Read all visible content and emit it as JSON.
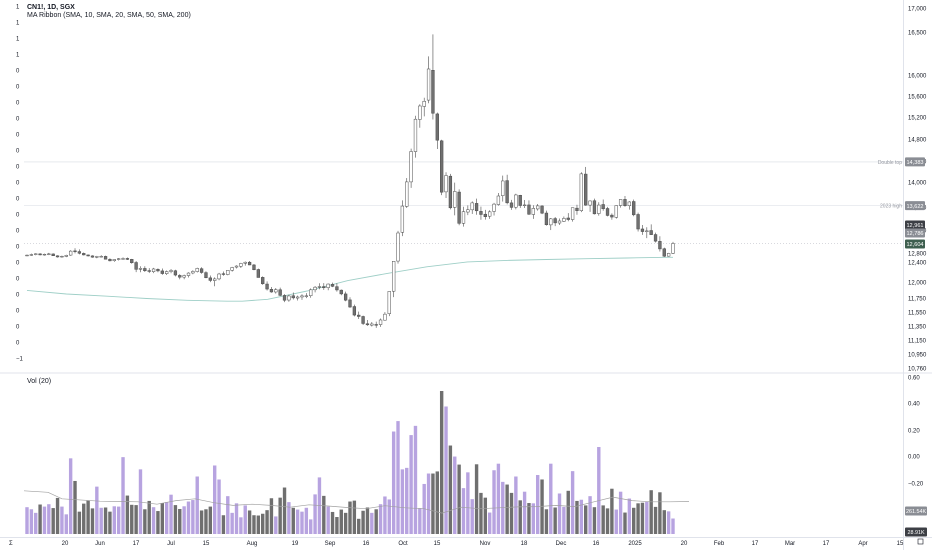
{
  "header": {
    "symbol_line": "CN1!, 1D, SGX",
    "indicator_line": "MA Ribbon (SMA, 10, SMA, 20, SMA, 50, SMA, 200)",
    "volume_line": "Vol (20)"
  },
  "colors": {
    "up": "#ffffff",
    "down": "#707070",
    "candle_outline": "#4a4a4a",
    "vol_up": "#b7a3e0",
    "vol_down": "#6f6f6f",
    "sma200": "#9fcfc7",
    "vol_ma": "#a0a0a0",
    "grid": "#eef0f3"
  },
  "chart_data": [
    {
      "type": "candlestick",
      "title": "CN1!, 1D, SGX",
      "price_axis_ticks": [
        "17,000",
        "16,500",
        "16,000",
        "15,600",
        "15,200",
        "14,800",
        "14,400",
        "14,000",
        "13,600",
        "13,200",
        "12,800",
        "12,400",
        "12,000",
        "11,750",
        "11,550",
        "11,350",
        "11,150",
        "10,950",
        "10,760"
      ],
      "time_axis_labels": [
        "20",
        "Jun",
        "17",
        "Jul",
        "15",
        "Aug",
        "19",
        "Sep",
        "16",
        "Oct",
        "15",
        "Nov",
        "18",
        "Dec",
        "16",
        "2025",
        "20",
        "Feb",
        "17",
        "Mar",
        "17",
        "Apr",
        "15"
      ],
      "left_axis_labels": [
        "1",
        "1",
        "1",
        "1",
        "0",
        "0",
        "0",
        "0",
        "0",
        "0",
        "0",
        "0",
        "0",
        "0",
        "0",
        "0",
        "0",
        "0",
        "0",
        "0",
        "0",
        "0",
        "−1"
      ],
      "annotations": [
        {
          "label": "Double top",
          "value": 14383
        },
        {
          "label": "2023 high",
          "value": 13622
        }
      ],
      "price_badges": [
        "14,383",
        "13,622",
        "12,961",
        "12,786",
        "12,604"
      ],
      "ohlc": [
        [
          12692,
          12729,
          12661,
          12706
        ],
        [
          12712,
          12773,
          12678,
          12733
        ],
        [
          12730,
          12787,
          12699,
          12764
        ],
        [
          12761,
          12791,
          12697,
          12716
        ],
        [
          12716,
          12775,
          12681,
          12745
        ],
        [
          12745,
          12802,
          12705,
          12762
        ],
        [
          12758,
          12783,
          12665,
          12678
        ],
        [
          12675,
          12698,
          12592,
          12624
        ],
        [
          12625,
          12681,
          12593,
          12656
        ],
        [
          12646,
          12722,
          12615,
          12699
        ],
        [
          12706,
          12848,
          12677,
          12833
        ],
        [
          12837,
          12882,
          12783,
          12830
        ],
        [
          12825,
          12862,
          12739,
          12787
        ],
        [
          12783,
          12808,
          12692,
          12714
        ],
        [
          12714,
          12736,
          12647,
          12669
        ],
        [
          12672,
          12698,
          12588,
          12614
        ],
        [
          12609,
          12671,
          12565,
          12648
        ],
        [
          12648,
          12703,
          12609,
          12653
        ],
        [
          12650,
          12683,
          12509,
          12524
        ],
        [
          12520,
          12568,
          12429,
          12451
        ],
        [
          12456,
          12534,
          12409,
          12515
        ],
        [
          12511,
          12571,
          12467,
          12546
        ],
        [
          12547,
          12608,
          12525,
          12555
        ],
        [
          12559,
          12602,
          12488,
          12515
        ],
        [
          12520,
          12539,
          12366,
          12385
        ],
        [
          12390,
          12447,
          12197,
          12253
        ],
        [
          12254,
          12316,
          12195,
          12272
        ],
        [
          12271,
          12316,
          12200,
          12225
        ],
        [
          12228,
          12278,
          12179,
          12211
        ],
        [
          12206,
          12282,
          12178,
          12261
        ],
        [
          12254,
          12272,
          12196,
          12222
        ],
        [
          12222,
          12269,
          12145,
          12169
        ],
        [
          12166,
          12231,
          12140,
          12209
        ],
        [
          12208,
          12261,
          12175,
          12232
        ],
        [
          12225,
          12246,
          12113,
          12139
        ],
        [
          12132,
          12156,
          12054,
          12096
        ],
        [
          12097,
          12148,
          12054,
          12130
        ],
        [
          12129,
          12195,
          12091,
          12179
        ],
        [
          12180,
          12236,
          12155,
          12212
        ],
        [
          12208,
          12286,
          12190,
          12273
        ],
        [
          12266,
          12294,
          12166,
          12190
        ],
        [
          12188,
          12216,
          12076,
          12085
        ],
        [
          12083,
          12129,
          11999,
          12031
        ],
        [
          12029,
          12093,
          11934,
          12062
        ],
        [
          12062,
          12183,
          12034,
          12160
        ],
        [
          12166,
          12210,
          12124,
          12151
        ],
        [
          12149,
          12238,
          12134,
          12234
        ],
        [
          12234,
          12303,
          12208,
          12291
        ],
        [
          12298,
          12336,
          12270,
          12319
        ],
        [
          12315,
          12382,
          12279,
          12372
        ],
        [
          12375,
          12424,
          12327,
          12396
        ],
        [
          12396,
          12442,
          12337,
          12341
        ],
        [
          12341,
          12360,
          12235,
          12245
        ],
        [
          12250,
          12268,
          12089,
          12090
        ],
        [
          12093,
          12112,
          11957,
          11972
        ],
        [
          11968,
          12013,
          11868,
          11890
        ],
        [
          11886,
          11922,
          11832,
          11844
        ],
        [
          11844,
          11906,
          11819,
          11880
        ],
        [
          11879,
          11913,
          11781,
          11791
        ],
        [
          11790,
          11811,
          11691,
          11718
        ],
        [
          11721,
          11800,
          11696,
          11782
        ],
        [
          11785,
          11836,
          11729,
          11752
        ],
        [
          11749,
          11787,
          11714,
          11766
        ],
        [
          11766,
          11808,
          11724,
          11783
        ],
        [
          11783,
          11826,
          11749,
          11784
        ],
        [
          11785,
          11900,
          11754,
          11878
        ],
        [
          11878,
          11937,
          11838,
          11919
        ],
        [
          11924,
          11980,
          11887,
          11929
        ],
        [
          11928,
          11982,
          11877,
          11910
        ],
        [
          11911,
          11977,
          11871,
          11968
        ],
        [
          11963,
          11991,
          11920,
          11932
        ],
        [
          11927,
          11981,
          11850,
          11876
        ],
        [
          11873,
          11883,
          11793,
          11814
        ],
        [
          11814,
          11850,
          11704,
          11719
        ],
        [
          11723,
          11761,
          11609,
          11621
        ],
        [
          11628,
          11655,
          11487,
          11506
        ],
        [
          11506,
          11556,
          11450,
          11486
        ],
        [
          11486,
          11499,
          11364,
          11386
        ],
        [
          11382,
          11435,
          11351,
          11367
        ],
        [
          11362,
          11408,
          11343,
          11379
        ],
        [
          11372,
          11413,
          11324,
          11368
        ],
        [
          11370,
          11457,
          11338,
          11436
        ],
        [
          11433,
          11548,
          11426,
          11519
        ],
        [
          11526,
          11855,
          11491,
          11853
        ],
        [
          11856,
          12441,
          11764,
          12432
        ],
        [
          12442,
          13184,
          12367,
          13148
        ],
        [
          13161,
          13706,
          13094,
          13615
        ],
        [
          13610,
          14075,
          13584,
          14002
        ],
        [
          14002,
          14626,
          13907,
          14573
        ],
        [
          14571,
          15223,
          14462,
          15160
        ],
        [
          15155,
          15444,
          15004,
          15410
        ],
        [
          15401,
          15567,
          15212,
          15500
        ],
        [
          15522,
          16216,
          15462,
          16070
        ],
        [
          16055,
          16473,
          15154,
          15272
        ],
        [
          15259,
          15284,
          14618,
          14778
        ],
        [
          14767,
          14787,
          13791,
          13837
        ],
        [
          13842,
          14185,
          13744,
          14124
        ],
        [
          14111,
          14154,
          13559,
          13586
        ],
        [
          13594,
          13990,
          13455,
          13849
        ],
        [
          13839,
          13883,
          13282,
          13316
        ],
        [
          13317,
          13604,
          13259,
          13519
        ],
        [
          13512,
          13626,
          13458,
          13552
        ],
        [
          13551,
          13690,
          13479,
          13666
        ],
        [
          13658,
          13734,
          13465,
          13534
        ],
        [
          13524,
          13607,
          13379,
          13470
        ],
        [
          13475,
          13549,
          13380,
          13431
        ],
        [
          13440,
          13543,
          13393,
          13516
        ],
        [
          13523,
          13667,
          13453,
          13646
        ],
        [
          13639,
          13824,
          13622,
          13776
        ],
        [
          13781,
          14122,
          13687,
          14020
        ],
        [
          14027,
          14139,
          13643,
          13667
        ],
        [
          13666,
          13714,
          13549,
          13593
        ],
        [
          13596,
          13813,
          13558,
          13793
        ],
        [
          13788,
          13794,
          13584,
          13624
        ],
        [
          13632,
          13712,
          13582,
          13633
        ],
        [
          13633,
          13706,
          13462,
          13474
        ],
        [
          13470,
          13628,
          13394,
          13576
        ],
        [
          13566,
          13649,
          13537,
          13618
        ],
        [
          13617,
          13628,
          13477,
          13493
        ],
        [
          13495,
          13536,
          13277,
          13291
        ],
        [
          13289,
          13409,
          13199,
          13394
        ],
        [
          13399,
          13426,
          13268,
          13324
        ],
        [
          13321,
          13400,
          13286,
          13357
        ],
        [
          13350,
          13434,
          13341,
          13402
        ],
        [
          13409,
          13494,
          13352,
          13382
        ],
        [
          13382,
          13588,
          13346,
          13587
        ],
        [
          13580,
          13636,
          13466,
          13536
        ],
        [
          13535,
          14185,
          13511,
          14155
        ],
        [
          14151,
          14287,
          13620,
          13630
        ],
        [
          13630,
          13706,
          13515,
          13697
        ],
        [
          13700,
          13734,
          13469,
          13481
        ],
        [
          13486,
          13676,
          13450,
          13631
        ],
        [
          13640,
          13720,
          13535,
          13569
        ],
        [
          13574,
          13603,
          13437,
          13453
        ],
        [
          13459,
          13489,
          13379,
          13425
        ],
        [
          13420,
          13627,
          13398,
          13623
        ],
        [
          13624,
          13725,
          13590,
          13721
        ],
        [
          13722,
          13776,
          13605,
          13620
        ],
        [
          13620,
          13695,
          13554,
          13681
        ],
        [
          13688,
          13719,
          13439,
          13464
        ],
        [
          13470,
          13503,
          13174,
          13217
        ],
        [
          13218,
          13287,
          13116,
          13173
        ],
        [
          13170,
          13247,
          13059,
          13185
        ],
        [
          13191,
          13297,
          13115,
          13119
        ],
        [
          13121,
          13154,
          12983,
          13006
        ],
        [
          13003,
          13092,
          12827,
          12871
        ],
        [
          12874,
          12893,
          12627,
          12657
        ],
        [
          12660,
          12803,
          12640,
          12784
        ],
        [
          12785,
          12994,
          12753,
          12966
        ]
      ],
      "sma200": {
        "x": [
          0,
          28,
          57,
          85,
          114,
          142,
          153,
          171,
          199,
          228,
          256,
          284,
          313,
          341,
          369,
          398,
          426,
          454,
          459
        ],
        "values": [
          11868,
          11812,
          11778,
          11743,
          11717,
          11704,
          11704,
          11732,
          11860,
          12028,
          12171,
          12304,
          12404,
          12469,
          12512,
          12547,
          12579,
          12607,
          12610
        ]
      }
    },
    {
      "type": "bar",
      "title": "Vol (20)",
      "y_ticks": [
        "0.60",
        "0.40",
        "0.20",
        "0.00",
        "−0.20"
      ],
      "badges": [
        "261.54K",
        "28.91K"
      ],
      "values": [
        90,
        83,
        71,
        99,
        92,
        100,
        87,
        121,
        92,
        66,
        254,
        178,
        75,
        102,
        112,
        86,
        159,
        88,
        89,
        75,
        93,
        92,
        258,
        129,
        98,
        97,
        217,
        83,
        111,
        90,
        77,
        104,
        107,
        132,
        97,
        84,
        93,
        109,
        114,
        193,
        79,
        83,
        92,
        230,
        183,
        63,
        127,
        71,
        103,
        56,
        96,
        79,
        63,
        62,
        68,
        80,
        120,
        59,
        122,
        156,
        107,
        88,
        82,
        75,
        88,
        49,
        133,
        190,
        128,
        92,
        74,
        57,
        82,
        71,
        109,
        112,
        51,
        78,
        89,
        71,
        83,
        100,
        126,
        116,
        344,
        379,
        217,
        222,
        332,
        363,
        87,
        168,
        203,
        203,
        210,
        480,
        428,
        297,
        260,
        233,
        154,
        207,
        117,
        234,
        138,
        122,
        72,
        214,
        236,
        175,
        166,
        138,
        193,
        113,
        142,
        104,
        103,
        198,
        183,
        83,
        236,
        89,
        136,
        91,
        145,
        211,
        111,
        115,
        96,
        127,
        90,
        292,
        96,
        86,
        152,
        82,
        142,
        72,
        119,
        88,
        103,
        105,
        108,
        147,
        91,
        140,
        80,
        76,
        52
      ],
      "ma20": {
        "x": [
          0,
          24,
          38,
          76,
          114,
          133,
          152,
          171,
          190,
          209,
          228,
          247,
          266,
          285,
          304,
          323,
          342,
          361,
          381,
          400,
          418,
          437,
          456,
          475,
          494,
          513,
          532,
          551,
          570,
          589,
          608,
          627,
          646,
          665
        ],
        "values": [
          145,
          140,
          118,
          110,
          108,
          100,
          112,
          118,
          105,
          96,
          100,
          96,
          90,
          98,
          94,
          89,
          85,
          95,
          88,
          85,
          70,
          90,
          85,
          88,
          91,
          92,
          96,
          92,
          108,
          124,
          112,
          108,
          108,
          109
        ]
      }
    }
  ]
}
